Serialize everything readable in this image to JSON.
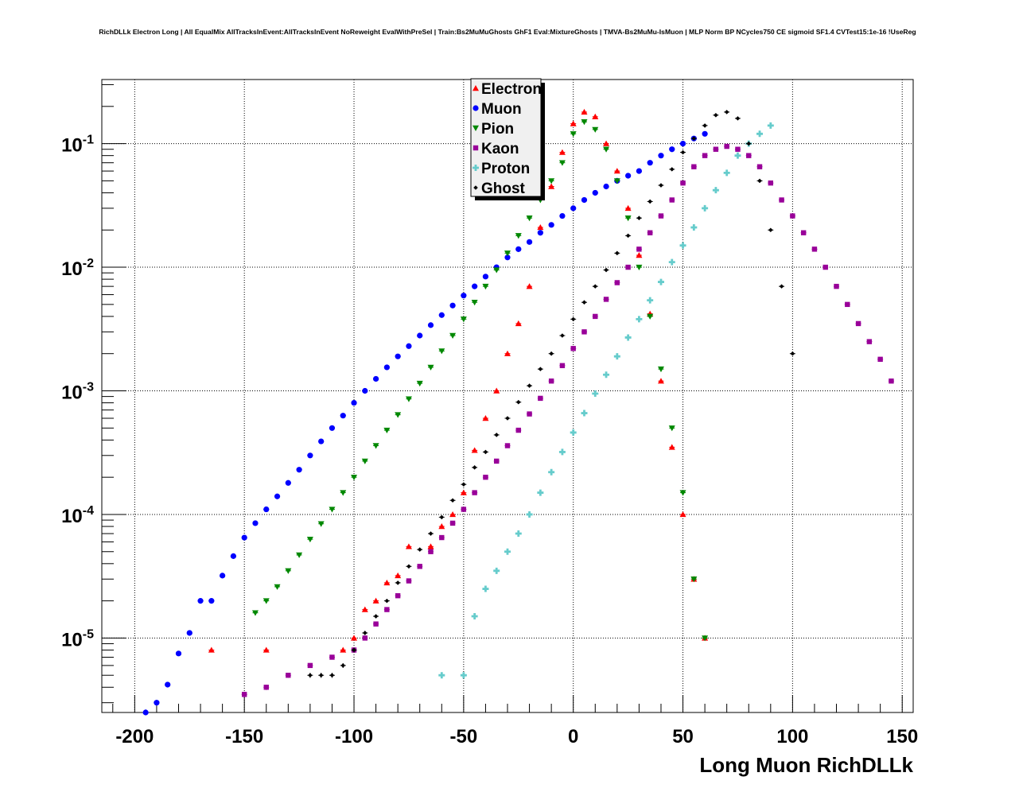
{
  "chart_data": {
    "type": "scatter",
    "title": "RichDLLk Electron Long | All EqualMix AllTracksInEvent:AllTracksInEvent NoReweight EvalWithPreSel | Train:Bs2MuMuGhosts GhF1 Eval:MixtureGhosts | TMVA-Bs2MuMu-IsMuon | MLP Norm BP NCycles750 CE sigmoid SF1.4 CVTest15:1e-16 !UseReg",
    "xlabel": "Long Muon RichDLLk",
    "ylabel": "",
    "xlim": [
      -215,
      155
    ],
    "ylim": [
      2.5e-06,
      0.33
    ],
    "y_scale": "log",
    "grid": true,
    "legend_position": "top-center",
    "x_ticks": [
      -200,
      -150,
      -100,
      -50,
      0,
      50,
      100,
      150
    ],
    "x_tick_labels": [
      "-200",
      "-150",
      "-100",
      "-50",
      "0",
      "50",
      "100",
      "150"
    ],
    "y_tick_labels": [
      {
        "value": 1e-05,
        "base": "10",
        "exp": "-5"
      },
      {
        "value": 0.0001,
        "base": "10",
        "exp": "-4"
      },
      {
        "value": 0.001,
        "base": "10",
        "exp": "-3"
      },
      {
        "value": 0.01,
        "base": "10",
        "exp": "-2"
      },
      {
        "value": 0.1,
        "base": "10",
        "exp": "-1"
      }
    ],
    "series": [
      {
        "name": "Electron",
        "color": "#ff0000",
        "marker": "triangle-up",
        "points": [
          [
            -165,
            8e-06
          ],
          [
            -140,
            8e-06
          ],
          [
            -105,
            8e-06
          ],
          [
            -100,
            1e-05
          ],
          [
            -95,
            1.7e-05
          ],
          [
            -90,
            2e-05
          ],
          [
            -85,
            2.8e-05
          ],
          [
            -80,
            3.2e-05
          ],
          [
            -75,
            5.5e-05
          ],
          [
            -65,
            5.5e-05
          ],
          [
            -60,
            8e-05
          ],
          [
            -55,
            0.0001
          ],
          [
            -50,
            0.00015
          ],
          [
            -45,
            0.00033
          ],
          [
            -40,
            0.0006
          ],
          [
            -35,
            0.001
          ],
          [
            -30,
            0.002
          ],
          [
            -25,
            0.0035
          ],
          [
            -20,
            0.007
          ],
          [
            -15,
            0.021
          ],
          [
            -10,
            0.045
          ],
          [
            -5,
            0.085
          ],
          [
            0,
            0.145
          ],
          [
            5,
            0.18
          ],
          [
            10,
            0.165
          ],
          [
            15,
            0.1
          ],
          [
            20,
            0.06
          ],
          [
            25,
            0.03
          ],
          [
            30,
            0.0125
          ],
          [
            35,
            0.0042
          ],
          [
            40,
            0.0012
          ],
          [
            45,
            0.00035
          ],
          [
            50,
            0.0001
          ],
          [
            55,
            3e-05
          ],
          [
            60,
            1e-05
          ]
        ]
      },
      {
        "name": "Muon",
        "color": "#0000ff",
        "marker": "circle",
        "points": [
          [
            -195,
            2.5e-06
          ],
          [
            -190,
            3e-06
          ],
          [
            -185,
            4.2e-06
          ],
          [
            -180,
            7.5e-06
          ],
          [
            -175,
            1.1e-05
          ],
          [
            -170,
            2e-05
          ],
          [
            -165,
            2e-05
          ],
          [
            -160,
            3.2e-05
          ],
          [
            -155,
            4.6e-05
          ],
          [
            -150,
            6.5e-05
          ],
          [
            -145,
            8.5e-05
          ],
          [
            -140,
            0.00011
          ],
          [
            -135,
            0.00014
          ],
          [
            -130,
            0.00018
          ],
          [
            -125,
            0.00023
          ],
          [
            -120,
            0.0003
          ],
          [
            -115,
            0.00039
          ],
          [
            -110,
            0.0005
          ],
          [
            -105,
            0.00063
          ],
          [
            -100,
            0.0008
          ],
          [
            -95,
            0.001
          ],
          [
            -90,
            0.00125
          ],
          [
            -85,
            0.00155
          ],
          [
            -80,
            0.0019
          ],
          [
            -75,
            0.0023
          ],
          [
            -70,
            0.0028
          ],
          [
            -65,
            0.0034
          ],
          [
            -60,
            0.0041
          ],
          [
            -55,
            0.0049
          ],
          [
            -50,
            0.0059
          ],
          [
            -45,
            0.007
          ],
          [
            -40,
            0.0084
          ],
          [
            -35,
            0.01
          ],
          [
            -30,
            0.012
          ],
          [
            -25,
            0.014
          ],
          [
            -20,
            0.016
          ],
          [
            -15,
            0.019
          ],
          [
            -10,
            0.022
          ],
          [
            -5,
            0.026
          ],
          [
            0,
            0.03
          ],
          [
            5,
            0.035
          ],
          [
            10,
            0.04
          ],
          [
            15,
            0.045
          ],
          [
            20,
            0.05
          ],
          [
            25,
            0.055
          ],
          [
            30,
            0.06
          ],
          [
            35,
            0.07
          ],
          [
            40,
            0.08
          ],
          [
            45,
            0.09
          ],
          [
            50,
            0.1
          ],
          [
            55,
            0.11
          ],
          [
            60,
            0.12
          ]
        ]
      },
      {
        "name": "Pion",
        "color": "#008800",
        "marker": "triangle-down",
        "points": [
          [
            -145,
            1.6e-05
          ],
          [
            -140,
            2e-05
          ],
          [
            -135,
            2.6e-05
          ],
          [
            -130,
            3.5e-05
          ],
          [
            -125,
            4.7e-05
          ],
          [
            -120,
            6.3e-05
          ],
          [
            -115,
            8.4e-05
          ],
          [
            -110,
            0.00011
          ],
          [
            -105,
            0.00015
          ],
          [
            -100,
            0.0002
          ],
          [
            -95,
            0.00027
          ],
          [
            -90,
            0.00036
          ],
          [
            -85,
            0.00048
          ],
          [
            -80,
            0.00064
          ],
          [
            -75,
            0.00086
          ],
          [
            -70,
            0.00115
          ],
          [
            -65,
            0.00155
          ],
          [
            -60,
            0.0021
          ],
          [
            -55,
            0.0028
          ],
          [
            -50,
            0.0038
          ],
          [
            -45,
            0.0052
          ],
          [
            -40,
            0.007
          ],
          [
            -35,
            0.0095
          ],
          [
            -30,
            0.013
          ],
          [
            -25,
            0.018
          ],
          [
            -20,
            0.025
          ],
          [
            -15,
            0.035
          ],
          [
            -10,
            0.05
          ],
          [
            -5,
            0.07
          ],
          [
            0,
            0.12
          ],
          [
            5,
            0.15
          ],
          [
            10,
            0.13
          ],
          [
            15,
            0.09
          ],
          [
            20,
            0.05
          ],
          [
            25,
            0.025
          ],
          [
            30,
            0.01
          ],
          [
            35,
            0.004
          ],
          [
            40,
            0.0015
          ],
          [
            45,
            0.0005
          ],
          [
            50,
            0.00015
          ],
          [
            55,
            3e-05
          ],
          [
            60,
            1e-05
          ]
        ]
      },
      {
        "name": "Kaon",
        "color": "#990099",
        "marker": "square",
        "points": [
          [
            -150,
            3.5e-06
          ],
          [
            -140,
            4e-06
          ],
          [
            -130,
            5e-06
          ],
          [
            -120,
            6e-06
          ],
          [
            -110,
            7e-06
          ],
          [
            -100,
            8e-06
          ],
          [
            -95,
            1e-05
          ],
          [
            -90,
            1.3e-05
          ],
          [
            -85,
            1.7e-05
          ],
          [
            -80,
            2.2e-05
          ],
          [
            -75,
            2.9e-05
          ],
          [
            -70,
            3.8e-05
          ],
          [
            -65,
            5e-05
          ],
          [
            -60,
            6.5e-05
          ],
          [
            -55,
            8.5e-05
          ],
          [
            -50,
            0.00011
          ],
          [
            -45,
            0.00015
          ],
          [
            -40,
            0.0002
          ],
          [
            -35,
            0.00027
          ],
          [
            -30,
            0.00036
          ],
          [
            -25,
            0.00048
          ],
          [
            -20,
            0.00065
          ],
          [
            -15,
            0.00087
          ],
          [
            -10,
            0.0012
          ],
          [
            -5,
            0.0016
          ],
          [
            0,
            0.0022
          ],
          [
            5,
            0.003
          ],
          [
            10,
            0.004
          ],
          [
            15,
            0.0055
          ],
          [
            20,
            0.0075
          ],
          [
            25,
            0.01
          ],
          [
            30,
            0.014
          ],
          [
            35,
            0.019
          ],
          [
            40,
            0.026
          ],
          [
            45,
            0.035
          ],
          [
            50,
            0.048
          ],
          [
            55,
            0.065
          ],
          [
            60,
            0.08
          ],
          [
            65,
            0.09
          ],
          [
            70,
            0.095
          ],
          [
            75,
            0.09
          ],
          [
            80,
            0.08
          ],
          [
            85,
            0.065
          ],
          [
            90,
            0.048
          ],
          [
            95,
            0.035
          ],
          [
            100,
            0.026
          ],
          [
            105,
            0.019
          ],
          [
            110,
            0.014
          ],
          [
            115,
            0.01
          ],
          [
            120,
            0.007
          ],
          [
            125,
            0.005
          ],
          [
            130,
            0.0035
          ],
          [
            135,
            0.0025
          ],
          [
            140,
            0.0018
          ],
          [
            145,
            0.0012
          ]
        ]
      },
      {
        "name": "Proton",
        "color": "#66cccc",
        "marker": "cross",
        "points": [
          [
            -60,
            5e-06
          ],
          [
            -50,
            5e-06
          ],
          [
            -45,
            1.5e-05
          ],
          [
            -40,
            2.5e-05
          ],
          [
            -35,
            3.5e-05
          ],
          [
            -30,
            5e-05
          ],
          [
            -25,
            7e-05
          ],
          [
            -20,
            0.0001
          ],
          [
            -15,
            0.00015
          ],
          [
            -10,
            0.00022
          ],
          [
            -5,
            0.00032
          ],
          [
            0,
            0.00046
          ],
          [
            5,
            0.00066
          ],
          [
            10,
            0.00095
          ],
          [
            15,
            0.00135
          ],
          [
            20,
            0.0019
          ],
          [
            25,
            0.0027
          ],
          [
            30,
            0.0038
          ],
          [
            35,
            0.0054
          ],
          [
            40,
            0.0076
          ],
          [
            45,
            0.011
          ],
          [
            50,
            0.015
          ],
          [
            55,
            0.021
          ],
          [
            60,
            0.03
          ],
          [
            65,
            0.042
          ],
          [
            70,
            0.058
          ],
          [
            75,
            0.08
          ],
          [
            80,
            0.1
          ],
          [
            85,
            0.12
          ],
          [
            90,
            0.14
          ]
        ]
      },
      {
        "name": "Ghost",
        "color": "#000000",
        "marker": "diamond",
        "points": [
          [
            -120,
            5e-06
          ],
          [
            -115,
            5e-06
          ],
          [
            -110,
            5e-06
          ],
          [
            -105,
            6e-06
          ],
          [
            -100,
            8e-06
          ],
          [
            -95,
            1.1e-05
          ],
          [
            -90,
            1.5e-05
          ],
          [
            -85,
            2e-05
          ],
          [
            -80,
            2.8e-05
          ],
          [
            -75,
            3.8e-05
          ],
          [
            -70,
            5.2e-05
          ],
          [
            -65,
            7e-05
          ],
          [
            -60,
            9.5e-05
          ],
          [
            -55,
            0.00013
          ],
          [
            -50,
            0.000175
          ],
          [
            -45,
            0.00024
          ],
          [
            -40,
            0.00032
          ],
          [
            -35,
            0.00044
          ],
          [
            -30,
            0.0006
          ],
          [
            -25,
            0.00081
          ],
          [
            -20,
            0.0011
          ],
          [
            -15,
            0.0015
          ],
          [
            -10,
            0.002
          ],
          [
            -5,
            0.0028
          ],
          [
            0,
            0.0038
          ],
          [
            5,
            0.0052
          ],
          [
            10,
            0.007
          ],
          [
            15,
            0.0095
          ],
          [
            20,
            0.013
          ],
          [
            25,
            0.018
          ],
          [
            30,
            0.025
          ],
          [
            35,
            0.034
          ],
          [
            40,
            0.046
          ],
          [
            45,
            0.062
          ],
          [
            50,
            0.085
          ],
          [
            55,
            0.11
          ],
          [
            60,
            0.14
          ],
          [
            65,
            0.17
          ],
          [
            70,
            0.18
          ],
          [
            75,
            0.16
          ],
          [
            80,
            0.1
          ],
          [
            85,
            0.05
          ],
          [
            90,
            0.02
          ],
          [
            95,
            0.007
          ],
          [
            100,
            0.002
          ]
        ]
      }
    ]
  }
}
